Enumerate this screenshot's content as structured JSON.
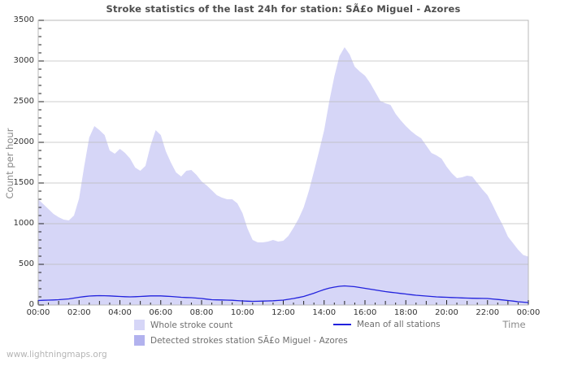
{
  "title": "Stroke statistics of the last 24h for station: SÃ£o Miguel - Azores",
  "y_axis": {
    "title": "Count per hour"
  },
  "x_axis": {
    "title": "Time"
  },
  "watermark": "www.lightningmaps.org",
  "legend": {
    "whole_label": "Whole stroke count",
    "mean_label": "Mean of all stations",
    "detected_label": "Detected strokes station SÃ£o Miguel - Azores"
  },
  "colors": {
    "whole_fill": "#d6d6f7",
    "detected_fill": "#b2b2ee",
    "mean_line": "#2222dd",
    "grid": "#bbbbbb",
    "border": "#b9b9b9",
    "tick": "#222222"
  },
  "chart_data": {
    "type": "area",
    "title": "Stroke statistics of the last 24h for station: SÃ£o Miguel - Azores",
    "xlabel": "Time",
    "ylabel": "Count per hour",
    "xlim": [
      0,
      24
    ],
    "ylim": [
      0,
      3500
    ],
    "grid": "horizontal-only",
    "legend_position": "bottom",
    "x_step_hours": 0.25,
    "x_minor_step": 0.5,
    "y_minor_step": 100,
    "y_major_ticks": [
      0,
      500,
      1000,
      1500,
      2000,
      2500,
      3000,
      3500
    ],
    "x_tick_labels": [
      {
        "hour": 0,
        "label": "00:00"
      },
      {
        "hour": 2,
        "label": "02:00"
      },
      {
        "hour": 4,
        "label": "04:00"
      },
      {
        "hour": 6,
        "label": "06:00"
      },
      {
        "hour": 8,
        "label": "08:00"
      },
      {
        "hour": 10,
        "label": "10:00"
      },
      {
        "hour": 12,
        "label": "12:00"
      },
      {
        "hour": 14,
        "label": "14:00"
      },
      {
        "hour": 16,
        "label": "16:00"
      },
      {
        "hour": 18,
        "label": "18:00"
      },
      {
        "hour": 20,
        "label": "20:00"
      },
      {
        "hour": 22,
        "label": "22:00"
      },
      {
        "hour": 24,
        "label": "00:00"
      }
    ],
    "series": [
      {
        "name": "Whole stroke count",
        "type": "area",
        "color": "#d6d6f7",
        "values": [
          1300,
          1240,
          1180,
          1120,
          1080,
          1050,
          1040,
          1100,
          1310,
          1700,
          2060,
          2200,
          2150,
          2090,
          1900,
          1860,
          1920,
          1870,
          1800,
          1690,
          1650,
          1710,
          1960,
          2150,
          2090,
          1890,
          1750,
          1630,
          1580,
          1650,
          1660,
          1600,
          1520,
          1470,
          1410,
          1350,
          1320,
          1300,
          1300,
          1250,
          1130,
          940,
          800,
          770,
          770,
          780,
          800,
          780,
          790,
          850,
          950,
          1060,
          1200,
          1400,
          1640,
          1890,
          2150,
          2500,
          2810,
          3060,
          3170,
          3080,
          2930,
          2870,
          2820,
          2730,
          2620,
          2510,
          2480,
          2460,
          2350,
          2270,
          2200,
          2140,
          2090,
          2050,
          1960,
          1870,
          1840,
          1800,
          1700,
          1620,
          1560,
          1570,
          1590,
          1580,
          1500,
          1420,
          1350,
          1230,
          1100,
          980,
          840,
          760,
          680,
          615,
          595
        ]
      },
      {
        "name": "Detected strokes station SÃ£o Miguel - Azores",
        "type": "area",
        "color": "#b2b2ee",
        "values": [
          0,
          0,
          0,
          0,
          0,
          0,
          0,
          0,
          0,
          0,
          0,
          0,
          0,
          0,
          0,
          0,
          0,
          0,
          0,
          0,
          0,
          0,
          0,
          0,
          0,
          0,
          0,
          0,
          0,
          0,
          0,
          0,
          0,
          0,
          0,
          0,
          0,
          0,
          0,
          0,
          0,
          0,
          0,
          0,
          0,
          0,
          0,
          0,
          0,
          0,
          0,
          0,
          0,
          0,
          0,
          0,
          0,
          0,
          0,
          0,
          0,
          0,
          0,
          0,
          0,
          0,
          0,
          0,
          0,
          0,
          0,
          0,
          0,
          0,
          0,
          0,
          0,
          0,
          0,
          0,
          0,
          0,
          0,
          0,
          0,
          0,
          0,
          0,
          0,
          0,
          0,
          0,
          0,
          0,
          0,
          0,
          0
        ]
      },
      {
        "name": "Mean of all stations",
        "type": "line",
        "color": "#2222dd",
        "values": [
          55,
          58,
          60,
          62,
          65,
          70,
          75,
          85,
          95,
          103,
          110,
          113,
          115,
          114,
          112,
          108,
          105,
          102,
          100,
          102,
          105,
          108,
          112,
          112,
          112,
          108,
          105,
          100,
          95,
          92,
          90,
          85,
          80,
          72,
          65,
          63,
          62,
          60,
          58,
          54,
          50,
          47,
          45,
          46,
          48,
          50,
          52,
          56,
          60,
          70,
          80,
          92,
          105,
          125,
          145,
          168,
          190,
          207,
          220,
          230,
          235,
          230,
          225,
          215,
          205,
          195,
          185,
          175,
          165,
          157,
          150,
          142,
          135,
          127,
          120,
          115,
          110,
          105,
          100,
          97,
          95,
          92,
          90,
          87,
          85,
          83,
          82,
          81,
          80,
          74,
          68,
          62,
          55,
          48,
          40,
          35,
          30
        ]
      }
    ]
  }
}
